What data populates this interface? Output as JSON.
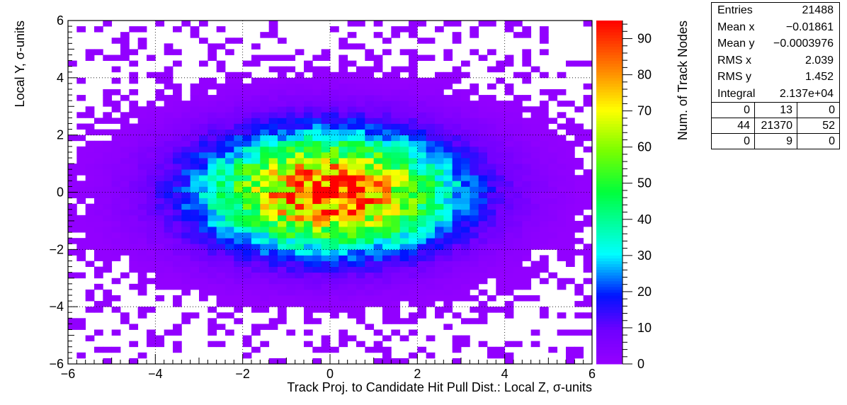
{
  "chart_data": {
    "type": "heatmap",
    "title": "",
    "xlabel": "Track Proj. to Candidate Hit Pull Dist.: Local Z, σ-units",
    "ylabel": "Local Y, σ-units",
    "zlabel": "Num. of Track Nodes",
    "xlim": [
      -6,
      6
    ],
    "ylim": [
      -6,
      6
    ],
    "zlim": [
      0,
      95
    ],
    "x_ticks": [
      "−6",
      "−4",
      "−2",
      "0",
      "2",
      "4",
      "6"
    ],
    "y_ticks": [
      "6",
      "4",
      "2",
      "0",
      "−2",
      "−4",
      "−6"
    ],
    "z_ticks": [
      "90",
      "80",
      "70",
      "60",
      "50",
      "40",
      "30",
      "20",
      "10",
      "0"
    ],
    "z_tick_values": [
      90,
      80,
      70,
      60,
      50,
      40,
      30,
      20,
      10,
      0
    ],
    "bins": {
      "nx": 60,
      "ny": 60
    },
    "grid": true,
    "peak_value": 93,
    "rms_x": 2.039,
    "rms_y": 1.452,
    "entries": 21488
  },
  "stats": {
    "rows": [
      {
        "label": "Entries",
        "value": "21488"
      },
      {
        "label": "Mean x",
        "value": "−0.01861"
      },
      {
        "label": "Mean y",
        "value": "−0.0003976"
      },
      {
        "label": "RMS x",
        "value": "2.039"
      },
      {
        "label": "RMS y",
        "value": "1.452"
      },
      {
        "label": "Integral",
        "value": "2.137e+04"
      }
    ],
    "grid": [
      [
        "0",
        "13",
        "0"
      ],
      [
        "44",
        "21370",
        "52"
      ],
      [
        "0",
        "9",
        "0"
      ]
    ]
  }
}
